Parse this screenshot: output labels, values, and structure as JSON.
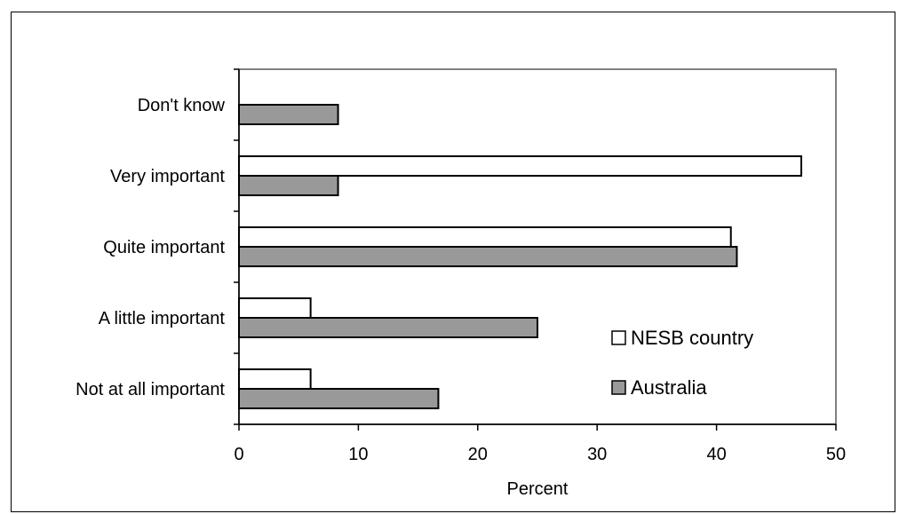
{
  "chart_data": {
    "type": "bar",
    "orientation": "horizontal",
    "categories": [
      "Not at all important",
      "A little important",
      "Quite important",
      "Very important",
      "Don't know"
    ],
    "series": [
      {
        "name": "NESB country",
        "color": "#ffffff",
        "values": [
          6,
          6,
          41.2,
          47.1,
          0
        ]
      },
      {
        "name": "Australia",
        "color": "#999999",
        "values": [
          16.7,
          25,
          41.7,
          8.3,
          8.3
        ]
      }
    ],
    "xlabel": "Percent",
    "xlim": [
      0,
      50
    ],
    "xticks": [
      0,
      10,
      20,
      30,
      40,
      50
    ],
    "grid": false,
    "legend_position": "bottom-right"
  }
}
